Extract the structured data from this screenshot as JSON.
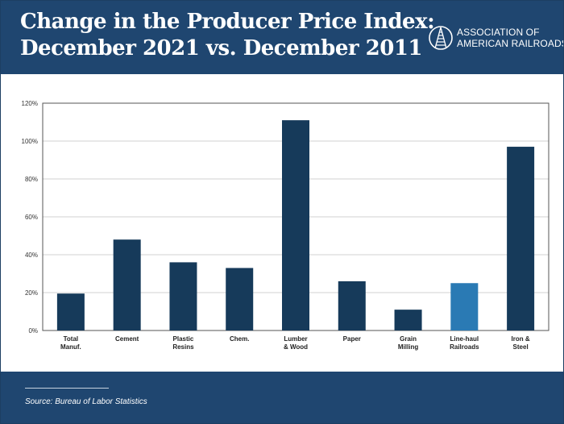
{
  "header": {
    "title_line1": "Change in the Producer Price Index:",
    "title_line2": "December 2021 vs. December 2011",
    "logo_line1": "ASSOCIATION OF",
    "logo_line2": "AMERICAN RAILROADS",
    "logo_icon": "railroad-track-icon"
  },
  "colors": {
    "header_bg": "#1f4670",
    "bar": "#163a5a",
    "bar_highlight": "#2a7ab4",
    "grid": "#d0d0d0"
  },
  "chart_data": {
    "type": "bar",
    "title": "",
    "xlabel": "",
    "ylabel": "",
    "ylim": [
      0,
      120
    ],
    "yticks": [
      0,
      20,
      40,
      60,
      80,
      100,
      120
    ],
    "ytick_labels": [
      "0%",
      "20%",
      "40%",
      "60%",
      "80%",
      "100%",
      "120%"
    ],
    "grid": true,
    "categories": [
      [
        "Total",
        "Manuf."
      ],
      [
        "Cement"
      ],
      [
        "Plastic",
        "Resins"
      ],
      [
        "Chem."
      ],
      [
        "Lumber",
        "& Wood"
      ],
      [
        "Paper"
      ],
      [
        "Grain",
        "Milling"
      ],
      [
        "Line-haul",
        "Railroads"
      ],
      [
        "Iron &",
        "Steel"
      ]
    ],
    "values": [
      19.5,
      48,
      36,
      33,
      111,
      26,
      11,
      25,
      97
    ],
    "highlight_index": 7
  },
  "footer": {
    "source": "Source: Bureau of Labor Statistics"
  }
}
